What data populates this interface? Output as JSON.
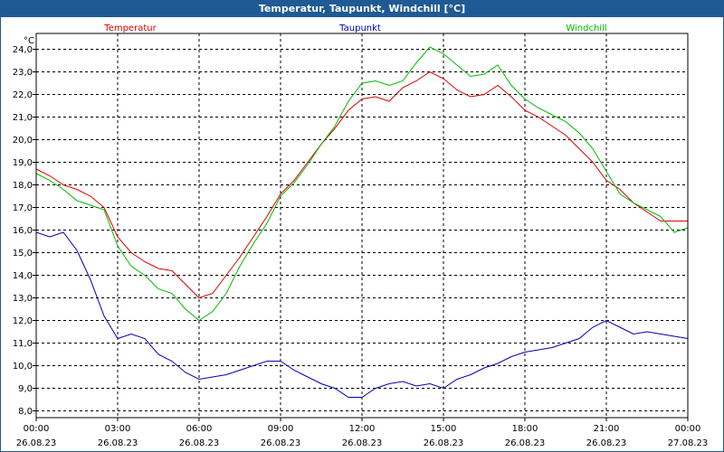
{
  "title": "Temperatur, Taupunkt, Windchill [°C]",
  "chart_data": {
    "type": "line",
    "title": "Temperatur, Taupunkt, Windchill [°C]",
    "ylabel": "°C",
    "ylim": [
      7.7,
      24.7
    ],
    "yticks": [
      "8,0",
      "9,0",
      "10,0",
      "11,0",
      "12,0",
      "13,0",
      "14,0",
      "15,0",
      "16,0",
      "17,0",
      "18,0",
      "19,0",
      "20,0",
      "21,0",
      "22,0",
      "23,0",
      "24,0"
    ],
    "yticks_values": [
      8,
      9,
      10,
      11,
      12,
      13,
      14,
      15,
      16,
      17,
      18,
      19,
      20,
      21,
      22,
      23,
      24
    ],
    "xlim_hours": [
      0,
      24
    ],
    "xticks": [
      {
        "time": "00:00",
        "date": "26.08.23"
      },
      {
        "time": "03:00",
        "date": "26.08.23"
      },
      {
        "time": "06:00",
        "date": "26.08.23"
      },
      {
        "time": "09:00",
        "date": "26.08.23"
      },
      {
        "time": "12:00",
        "date": "26.08.23"
      },
      {
        "time": "15:00",
        "date": "26.08.23"
      },
      {
        "time": "18:00",
        "date": "26.08.23"
      },
      {
        "time": "21:00",
        "date": "26.08.23"
      },
      {
        "time": "00:00",
        "date": "27.08.23"
      }
    ],
    "grid": true,
    "legend_position": "top",
    "x_hours": [
      0,
      0.5,
      1,
      1.5,
      2,
      2.5,
      3,
      3.5,
      4,
      4.5,
      5,
      5.5,
      6,
      6.5,
      7,
      7.5,
      8,
      8.5,
      9,
      9.5,
      10,
      10.5,
      11,
      11.5,
      12,
      12.5,
      13,
      13.5,
      14,
      14.5,
      15,
      15.5,
      16,
      16.5,
      17,
      17.5,
      18,
      18.5,
      19,
      19.5,
      20,
      20.5,
      21,
      21.5,
      22,
      22.5,
      23,
      23.5,
      24
    ],
    "series": [
      {
        "name": "Temperatur",
        "color": "#dd0000",
        "values": [
          18.7,
          18.4,
          18.0,
          17.8,
          17.5,
          17.0,
          15.7,
          15.0,
          14.6,
          14.3,
          14.2,
          13.6,
          13.0,
          13.2,
          14.0,
          14.8,
          15.7,
          16.6,
          17.6,
          18.2,
          19.0,
          19.8,
          20.5,
          21.3,
          21.8,
          21.9,
          21.7,
          22.3,
          22.6,
          23.0,
          22.7,
          22.2,
          21.9,
          22.0,
          22.4,
          21.9,
          21.3,
          21.0,
          20.6,
          20.2,
          19.6,
          19.0,
          18.2,
          17.8,
          17.2,
          16.8,
          16.4,
          16.4,
          16.4
        ]
      },
      {
        "name": "Taupunkt",
        "color": "#0000bb",
        "values": [
          15.9,
          15.7,
          15.9,
          15.1,
          13.8,
          12.2,
          11.2,
          11.4,
          11.2,
          10.5,
          10.2,
          9.7,
          9.4,
          9.5,
          9.6,
          9.8,
          10.0,
          10.2,
          10.2,
          9.8,
          9.5,
          9.2,
          9.0,
          8.6,
          8.6,
          9.0,
          9.2,
          9.3,
          9.1,
          9.2,
          9.0,
          9.4,
          9.6,
          9.9,
          10.1,
          10.4,
          10.6,
          10.7,
          10.8,
          11.0,
          11.2,
          11.7,
          12.0,
          11.7,
          11.4,
          11.5,
          11.4,
          11.3,
          11.2
        ]
      },
      {
        "name": "Windchill",
        "color": "#00bb00",
        "values": [
          18.5,
          18.2,
          17.8,
          17.3,
          17.1,
          16.9,
          15.3,
          14.4,
          14.0,
          13.4,
          13.2,
          12.5,
          12.0,
          12.4,
          13.2,
          14.4,
          15.4,
          16.3,
          17.5,
          18.1,
          18.9,
          19.8,
          20.6,
          21.7,
          22.5,
          22.6,
          22.4,
          22.6,
          23.4,
          24.1,
          23.8,
          23.3,
          22.8,
          22.9,
          23.3,
          22.4,
          21.8,
          21.4,
          21.1,
          20.8,
          20.3,
          19.6,
          18.6,
          17.6,
          17.2,
          16.9,
          16.6,
          15.9,
          16.1
        ]
      }
    ]
  }
}
